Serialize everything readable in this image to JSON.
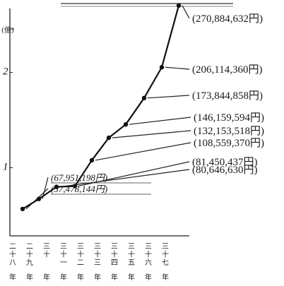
{
  "chart_data": {
    "type": "line",
    "title": "",
    "y_unit_label": "(億)",
    "y_ticks": [
      "1",
      "2"
    ],
    "ylim": [
      0,
      3
    ],
    "categories": [
      "二十八年",
      "二十九年",
      "三十年",
      "三十一年",
      "三十二年",
      "三十三年",
      "三十四年",
      "三十五年",
      "三十六年",
      "三十七年"
    ],
    "values": [
      57478144,
      67951198,
      80646630,
      81450437,
      108559370,
      132153518,
      146159594,
      173844858,
      206114360,
      270884632
    ],
    "annotations": [
      "(57,478,144円)",
      "(67,951,198円)",
      "(80,646,630円)",
      "(81,450,437円)",
      "(108,559,370円)",
      "(132,153,518円)",
      "(146,159,594円)",
      "(173,844,858円)",
      "(206,114,360円)",
      "(270,884,632円)"
    ],
    "grid": false,
    "legend": "none"
  }
}
